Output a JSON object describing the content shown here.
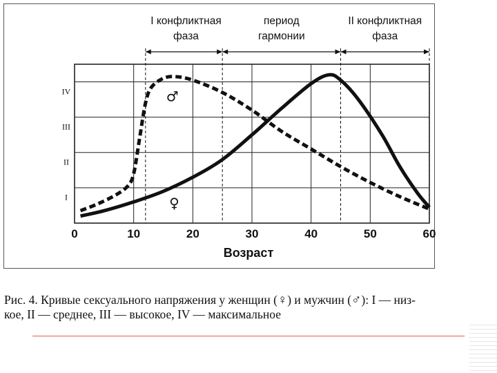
{
  "chart_data": {
    "type": "line",
    "xlabel": "Возраст",
    "x_ticks": [
      "0",
      "10",
      "20",
      "30",
      "40",
      "50",
      "60"
    ],
    "xlim": [
      0,
      60
    ],
    "y_levels": [
      "I",
      "II",
      "III",
      "IV"
    ],
    "ylim": [
      0,
      4.5
    ],
    "grid": true,
    "phases": [
      {
        "label_lines": [
          "I конфликтная",
          "фаза"
        ],
        "from": 12,
        "to": 25
      },
      {
        "label_lines": [
          "период",
          "гармонии"
        ],
        "from": 25,
        "to": 45
      },
      {
        "label_lines": [
          "II конфликтная",
          "фаза"
        ],
        "from": 45,
        "to": 60
      }
    ],
    "series": [
      {
        "name": "♂",
        "style": "dashed",
        "x": [
          1,
          4,
          7,
          9,
          10,
          11,
          12,
          13,
          15,
          17,
          20,
          25,
          30,
          35,
          40,
          45,
          50,
          55,
          60
        ],
        "y": [
          0.35,
          0.55,
          0.8,
          1.05,
          1.4,
          2.4,
          3.4,
          3.85,
          4.1,
          4.15,
          4.05,
          3.7,
          3.2,
          2.6,
          2.1,
          1.6,
          1.15,
          0.75,
          0.4
        ]
      },
      {
        "name": "♀",
        "style": "solid",
        "x": [
          1,
          5,
          10,
          15,
          20,
          25,
          30,
          35,
          40,
          43,
          45,
          48,
          52,
          55,
          58,
          60
        ],
        "y": [
          0.2,
          0.35,
          0.6,
          0.9,
          1.3,
          1.8,
          2.5,
          3.25,
          3.95,
          4.2,
          4.05,
          3.5,
          2.5,
          1.6,
          0.85,
          0.45
        ]
      }
    ]
  },
  "caption": {
    "part1": "Рис. 4. Кривые сексуального напряжения у женщин (",
    "female_symbol": "♀",
    "part2": ") и мужчин (",
    "male_symbol": "♂",
    "part3": "): I — низ-",
    "line2": "кое, II — среднее, III — высокое, IV — максимальное"
  },
  "colors": {
    "line": "#111111",
    "grid": "#222222",
    "frame": "#555555",
    "accent_line": "#e05a55"
  }
}
